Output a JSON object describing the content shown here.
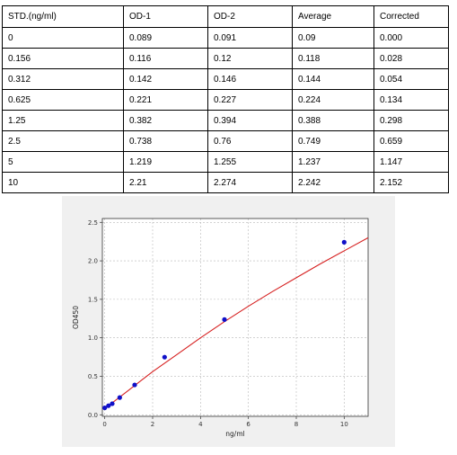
{
  "table": {
    "columns": [
      "STD.(ng/ml)",
      "OD-1",
      "OD-2",
      "Average",
      "Corrected"
    ],
    "rows": [
      [
        "0",
        "0.089",
        "0.091",
        "0.09",
        "0.000"
      ],
      [
        "0.156",
        "0.116",
        "0.12",
        "0.118",
        "0.028"
      ],
      [
        "0.312",
        "0.142",
        "0.146",
        "0.144",
        "0.054"
      ],
      [
        "0.625",
        "0.221",
        "0.227",
        "0.224",
        "0.134"
      ],
      [
        "1.25",
        "0.382",
        "0.394",
        "0.388",
        "0.298"
      ],
      [
        "2.5",
        "0.738",
        "0.76",
        "0.749",
        "0.659"
      ],
      [
        "5",
        "1.219",
        "1.255",
        "1.237",
        "1.147"
      ],
      [
        "10",
        "2.21",
        "2.274",
        "2.242",
        "2.152"
      ]
    ]
  },
  "chart_data": {
    "type": "scatter",
    "xlabel": "ng/ml",
    "ylabel": "OD450",
    "xlim": [
      -0.1,
      11
    ],
    "ylim": [
      -0.02,
      2.55
    ],
    "xticks": [
      0,
      2,
      4,
      6,
      8,
      10
    ],
    "yticks": [
      0.0,
      0.5,
      1.0,
      1.5,
      2.0,
      2.5
    ],
    "xtick_labels": [
      "0",
      "2",
      "4",
      "6",
      "8",
      "10"
    ],
    "ytick_labels": [
      "0.0",
      "0.5",
      "1.0",
      "1.5",
      "2.0",
      "2.5"
    ],
    "grid": true,
    "series": [
      {
        "kind": "points",
        "x": [
          0,
          0.156,
          0.312,
          0.625,
          1.25,
          2.5,
          5,
          10
        ],
        "y": [
          0.09,
          0.118,
          0.144,
          0.224,
          0.388,
          0.749,
          1.237,
          2.242
        ],
        "color": "#1010c8"
      },
      {
        "kind": "fit-curve",
        "x": [
          0,
          0.5,
          1,
          1.5,
          2,
          2.5,
          3,
          4,
          5,
          6,
          7,
          8,
          9,
          10,
          11
        ],
        "y": [
          0.08,
          0.2,
          0.32,
          0.44,
          0.56,
          0.67,
          0.78,
          1.0,
          1.21,
          1.41,
          1.6,
          1.78,
          1.96,
          2.13,
          2.3
        ],
        "color": "#d62020"
      }
    ]
  }
}
